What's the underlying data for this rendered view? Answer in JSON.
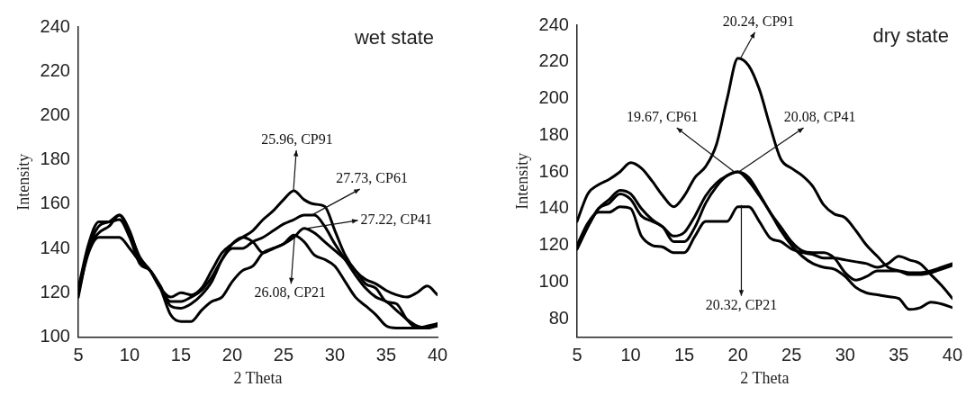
{
  "chart_data": [
    {
      "type": "line",
      "title": "wet state",
      "xlabel": "2 Theta",
      "ylabel": "Intensity",
      "xlim": [
        5,
        40
      ],
      "xticks": [
        5,
        10,
        15,
        20,
        25,
        30,
        35,
        40
      ],
      "ylim": [
        100,
        240
      ],
      "yticks": [
        100,
        120,
        140,
        160,
        180,
        200,
        220,
        240
      ],
      "grid": false,
      "legend": false,
      "marker": "none",
      "line_style": "solid",
      "x": [
        5,
        6,
        7,
        8,
        9,
        10,
        11,
        12,
        13,
        14,
        15,
        16,
        17,
        18,
        19,
        20,
        21,
        22,
        23,
        24,
        25,
        26,
        27,
        28,
        29,
        30,
        31,
        32,
        33,
        34,
        35,
        36,
        37,
        38,
        39,
        40
      ],
      "series": [
        {
          "color": "#000000",
          "values": [
            118,
            140,
            150,
            152,
            155,
            148,
            135,
            130,
            122,
            118,
            120,
            119,
            122,
            130,
            138,
            142,
            145,
            148,
            153,
            157,
            162,
            166,
            162,
            160,
            159,
            148,
            137,
            130,
            126,
            124,
            121,
            119,
            118,
            120,
            123,
            119
          ]
        },
        {
          "color": "#000000",
          "values": [
            120,
            140,
            147,
            150,
            155,
            147,
            136,
            130,
            122,
            116,
            116,
            118,
            121,
            127,
            135,
            140,
            140,
            143,
            145,
            148,
            151,
            153,
            155,
            155,
            150,
            142,
            135,
            128,
            122,
            118,
            116,
            112,
            108,
            105,
            104,
            105
          ]
        },
        {
          "color": "#000000",
          "values": [
            120,
            138,
            145,
            145,
            145,
            140,
            134,
            130,
            123,
            114,
            113,
            115,
            119,
            125,
            135,
            142,
            145,
            143,
            138,
            140,
            142,
            145,
            149,
            147,
            143,
            139,
            135,
            130,
            124,
            122,
            116,
            115,
            108,
            104,
            104,
            106
          ]
        },
        {
          "color": "#000000",
          "values": [
            122,
            142,
            152,
            152,
            153,
            145,
            133,
            130,
            122,
            110,
            107,
            107,
            112,
            116,
            118,
            125,
            130,
            132,
            138,
            140,
            142,
            146,
            143,
            137,
            135,
            132,
            125,
            118,
            114,
            110,
            105,
            104,
            104,
            104,
            105,
            106
          ]
        }
      ],
      "annotations": [
        {
          "text": "25.96, CP91",
          "x": 25.96,
          "y": 166
        },
        {
          "text": "27.73, CP61",
          "x": 27.73,
          "y": 155
        },
        {
          "text": "27.22, CP41",
          "x": 27.22,
          "y": 149
        },
        {
          "text": "26.08, CP21",
          "x": 26.08,
          "y": 146
        }
      ]
    },
    {
      "type": "line",
      "title": "dry state",
      "xlabel": "2 Theta",
      "ylabel": "Intensity",
      "xlim": [
        5,
        40
      ],
      "xticks": [
        5,
        10,
        15,
        20,
        25,
        30,
        35,
        40
      ],
      "ylim": [
        70,
        240
      ],
      "yticks": [
        80,
        100,
        120,
        140,
        160,
        180,
        200,
        220,
        240
      ],
      "grid": false,
      "legend": false,
      "marker": "none",
      "line_style": "solid",
      "x": [
        5,
        6,
        7,
        8,
        9,
        10,
        11,
        12,
        13,
        14,
        15,
        16,
        17,
        18,
        19,
        20,
        21,
        22,
        23,
        24,
        25,
        26,
        27,
        28,
        29,
        30,
        31,
        32,
        33,
        34,
        35,
        36,
        37,
        38,
        39,
        40
      ],
      "series": [
        {
          "color": "#000000",
          "values": [
            133,
            148,
            153,
            156,
            160,
            165,
            162,
            155,
            147,
            141,
            147,
            157,
            163,
            175,
            200,
            222,
            218,
            205,
            185,
            167,
            162,
            158,
            152,
            142,
            137,
            135,
            128,
            120,
            114,
            108,
            106,
            104,
            104,
            105,
            107,
            109
          ]
        },
        {
          "color": "#000000",
          "values": [
            118,
            130,
            140,
            143,
            148,
            145,
            136,
            133,
            130,
            122,
            122,
            130,
            143,
            152,
            158,
            160,
            155,
            147,
            138,
            128,
            120,
            114,
            110,
            108,
            107,
            103,
            97,
            94,
            93,
            92,
            91,
            85,
            86,
            89,
            88,
            86
          ]
        },
        {
          "color": "#000000",
          "values": [
            118,
            130,
            140,
            145,
            150,
            148,
            140,
            134,
            130,
            125,
            127,
            136,
            147,
            154,
            158,
            160,
            157,
            148,
            138,
            130,
            122,
            117,
            116,
            116,
            113,
            105,
            101,
            103,
            106,
            106,
            106,
            105,
            105,
            106,
            108,
            110
          ]
        },
        {
          "color": "#000000",
          "values": [
            120,
            132,
            138,
            138,
            141,
            140,
            125,
            120,
            119,
            116,
            116,
            125,
            133,
            133,
            133,
            141,
            141,
            133,
            124,
            122,
            118,
            116,
            115,
            113,
            113,
            112,
            111,
            110,
            108,
            110,
            114,
            112,
            110,
            104,
            98,
            91
          ]
        }
      ],
      "annotations": [
        {
          "text": "20.24, CP91",
          "x": 20.24,
          "y": 222
        },
        {
          "text": "19.67, CP61",
          "x": 19.67,
          "y": 160
        },
        {
          "text": "20.08, CP41",
          "x": 20.08,
          "y": 160
        },
        {
          "text": "20.32, CP21",
          "x": 20.32,
          "y": 142
        }
      ]
    }
  ]
}
